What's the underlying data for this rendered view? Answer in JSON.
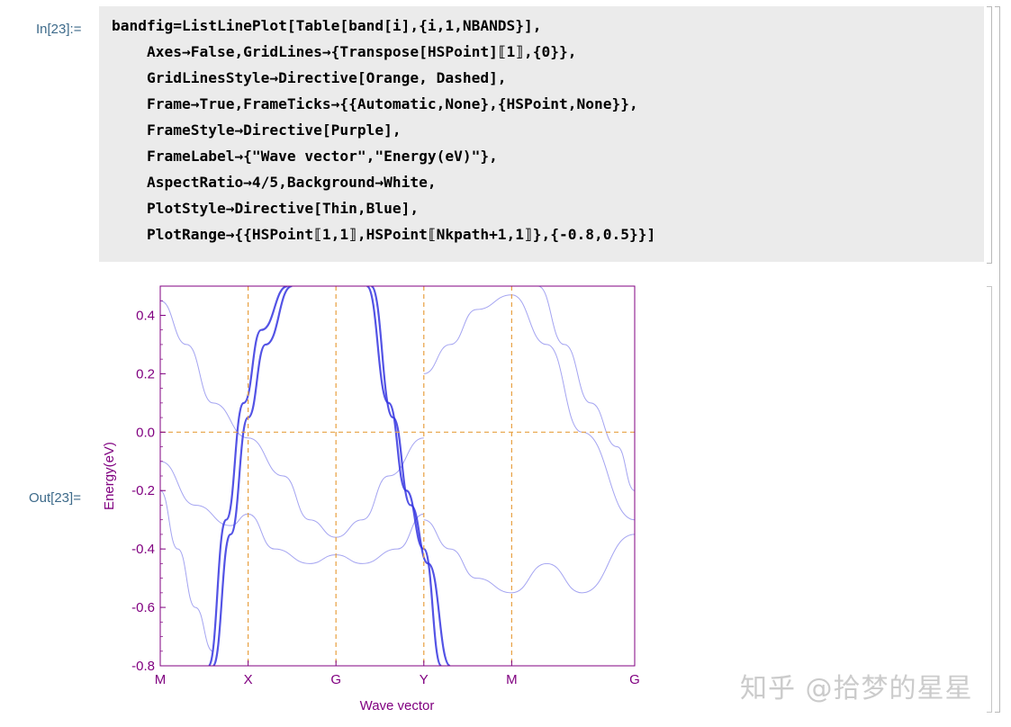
{
  "input_label": "In[23]:=",
  "output_label": "Out[23]=",
  "code_lines": [
    "bandfig=ListLinePlot[Table[band[i],{i,1,NBANDS}],",
    "    Axes→False,GridLines→{Transpose[HSPoint]⟦1⟧,{0}},",
    "    GridLinesStyle→Directive[Orange, Dashed],",
    "    Frame→True,FrameTicks→{{Automatic,None},{HSPoint,None}},",
    "    FrameStyle→Directive[Purple],",
    "    FrameLabel→{\"Wave vector\",\"Energy(eV)\"},",
    "    AspectRatio→4/5,Background→White,",
    "    PlotStyle→Directive[Thin,Blue],",
    "    PlotRange→{{HSPoint⟦1,1⟧,HSPoint⟦Nkpath+1,1⟧},{-0.8,0.5}}]"
  ],
  "watermark": "知乎 @拾梦的星星",
  "colors": {
    "frame": "#800080",
    "grid": "#e8a040",
    "bands": "#3535e0",
    "label_blue": "#3d6a8a",
    "cell_bg": "#ebebeb"
  },
  "chart_data": {
    "type": "line",
    "title": "",
    "xlabel": "Wave vector",
    "ylabel": "Energy(eV)",
    "x_ticks": [
      "M",
      "X",
      "G",
      "Y",
      "M",
      "G"
    ],
    "x_tick_positions": [
      0,
      1,
      2,
      3,
      4,
      5.4
    ],
    "xlim": [
      0,
      5.4
    ],
    "ylim": [
      -0.8,
      0.5
    ],
    "y_ticks": [
      0.4,
      0.2,
      0.0,
      -0.2,
      -0.4,
      -0.6,
      -0.8
    ],
    "y_tick_labels": [
      "0.4",
      "0.2",
      "0.0",
      "-0.2",
      "-0.4",
      "-0.6",
      "-0.8"
    ],
    "gridlines_x": [
      1,
      2,
      3,
      4
    ],
    "gridlines_y": [
      0
    ],
    "grid_style": "orange dashed",
    "series": [
      {
        "x": [
          0,
          0.3,
          0.6,
          1,
          1.4,
          1.7,
          2,
          2.3,
          2.6,
          3
        ],
        "values": [
          0.45,
          0.3,
          0.1,
          -0.02,
          -0.15,
          -0.3,
          -0.36,
          -0.3,
          -0.15,
          -0.02
        ]
      },
      {
        "x": [
          0,
          0.4,
          0.8,
          1,
          1.3,
          1.7,
          2,
          2.3,
          2.7,
          3
        ],
        "values": [
          -0.1,
          -0.25,
          -0.32,
          -0.28,
          -0.4,
          -0.45,
          -0.42,
          -0.45,
          -0.4,
          -0.28
        ]
      },
      {
        "x": [
          0.55,
          0.75,
          0.95,
          1.15,
          1.45
        ],
        "values": [
          -0.8,
          -0.3,
          0.1,
          0.35,
          0.5
        ]
      },
      {
        "x": [
          0.6,
          0.8,
          1.0,
          1.2,
          1.5
        ],
        "values": [
          -0.8,
          -0.35,
          0.05,
          0.3,
          0.5
        ]
      },
      {
        "x": [
          2.35,
          2.6,
          2.8,
          3.0,
          3.2
        ],
        "values": [
          0.5,
          0.1,
          -0.2,
          -0.4,
          -0.8
        ]
      },
      {
        "x": [
          2.4,
          2.65,
          2.85,
          3.05,
          3.3
        ],
        "values": [
          0.5,
          0.05,
          -0.25,
          -0.45,
          -0.8
        ]
      },
      {
        "x": [
          3,
          3.3,
          3.6,
          4,
          4.4,
          4.8,
          5.4
        ],
        "values": [
          0.2,
          0.3,
          0.42,
          0.47,
          0.3,
          0.0,
          -0.3
        ]
      },
      {
        "x": [
          3,
          3.3,
          3.6,
          4,
          4.4,
          4.8,
          5.4
        ],
        "values": [
          -0.3,
          -0.4,
          -0.5,
          -0.55,
          -0.45,
          -0.55,
          -0.35
        ]
      },
      {
        "x": [
          4.3,
          4.6,
          4.9,
          5.2,
          5.4
        ],
        "values": [
          0.5,
          0.3,
          0.1,
          -0.05,
          -0.2
        ]
      },
      {
        "x": [
          0,
          0.2,
          0.4,
          0.6
        ],
        "values": [
          -0.2,
          -0.4,
          -0.6,
          -0.75
        ]
      }
    ]
  }
}
